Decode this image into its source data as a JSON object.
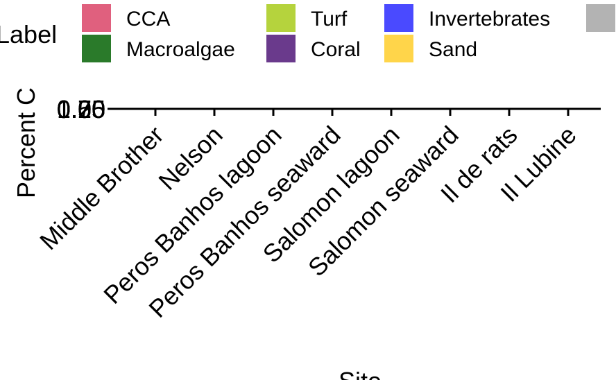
{
  "chart_data": {
    "type": "bar",
    "stacked": true,
    "xlabel": "Site",
    "ylabel": "Percent C",
    "categories": [
      "Middle Brother",
      "Nelson",
      "Peros Banhos lagoon",
      "Peros Banhos seaward",
      "Salomon lagoon",
      "Salomon seaward",
      "Il de rats",
      "Il Lubine"
    ],
    "y_tick_labels": [
      "0.00",
      "0.25",
      "0.50",
      "0.75",
      "1.00"
    ],
    "legend": {
      "title": "Label",
      "placement": "top",
      "entries": [
        {
          "label": "CCA",
          "color": "#e0607e"
        },
        {
          "label": "Macroalgae",
          "color": "#2a7a2a"
        },
        {
          "label": "Turf",
          "color": "#b5d33d"
        },
        {
          "label": "Coral",
          "color": "#6a3a8c"
        },
        {
          "label": "Invertebrates",
          "color": "#4a4aff"
        },
        {
          "label": "Sand",
          "color": "#ffd54a"
        },
        {
          "label": "",
          "color": "#b3b3b3"
        }
      ]
    },
    "grid": false
  }
}
